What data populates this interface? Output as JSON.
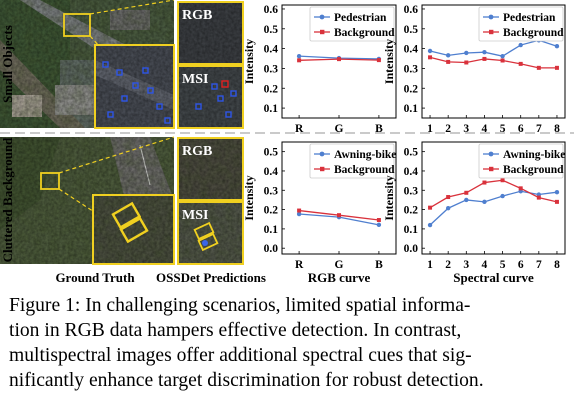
{
  "figure": {
    "row_labels": [
      "Small Objects",
      "Cluttered Background"
    ],
    "panel_labels": {
      "rgb": "RGB",
      "msi": "MSI"
    },
    "column_captions": {
      "ground_truth": "Ground Truth",
      "predictions": "OSSDet Predictions"
    },
    "xlabels": {
      "rgb": "RGB curve",
      "spectral": "Spectral curve"
    },
    "colors": {
      "series_a": "#4f7fcf",
      "series_b": "#d9323c",
      "box_yellow": "#f0d020",
      "box_blue": "#2e55e6",
      "divider": "#b8b8b8"
    }
  },
  "caption": {
    "lines": [
      "Figure 1: In challenging scenarios, limited spatial informa-",
      "tion in RGB data hampers effective detection. In contrast,",
      "multispectral images offer additional spectral cues that sig-",
      "nificantly enhance target discrimination for robust detection."
    ]
  },
  "chart_data": [
    {
      "type": "line",
      "title": "",
      "xlabel": "",
      "ylabel": "Intensity",
      "categories": [
        "R",
        "G",
        "B"
      ],
      "ylim": [
        0.05,
        0.62
      ],
      "yticks": [
        "0.1",
        "0.2",
        "0.3",
        "0.4",
        "0.5",
        "0.6"
      ],
      "legend": "top-right",
      "grid": false,
      "series": [
        {
          "name": "Pedestrian",
          "values": [
            0.362,
            0.352,
            0.348
          ]
        },
        {
          "name": "Background",
          "values": [
            0.341,
            0.347,
            0.342
          ]
        }
      ]
    },
    {
      "type": "line",
      "title": "",
      "xlabel": "",
      "ylabel": "Intensity",
      "categories": [
        "1",
        "2",
        "3",
        "4",
        "5",
        "6",
        "7",
        "8"
      ],
      "ylim": [
        0.05,
        0.62
      ],
      "yticks": [
        "0.1",
        "0.2",
        "0.3",
        "0.4",
        "0.5",
        "0.6"
      ],
      "legend": "top-right",
      "grid": false,
      "series": [
        {
          "name": "Pedestrian",
          "values": [
            0.388,
            0.366,
            0.378,
            0.382,
            0.362,
            0.418,
            0.442,
            0.412
          ]
        },
        {
          "name": "Background",
          "values": [
            0.356,
            0.333,
            0.33,
            0.348,
            0.34,
            0.323,
            0.303,
            0.303
          ]
        }
      ]
    },
    {
      "type": "line",
      "title": "",
      "xlabel": "RGB curve",
      "ylabel": "Intensity",
      "categories": [
        "R",
        "G",
        "B"
      ],
      "ylim": [
        -0.03,
        0.55
      ],
      "yticks": [
        "0.0",
        "0.1",
        "0.2",
        "0.3",
        "0.4",
        "0.5"
      ],
      "legend": "top-right",
      "grid": false,
      "series": [
        {
          "name": "Awning-bike",
          "values": [
            0.177,
            0.161,
            0.121
          ]
        },
        {
          "name": "Background",
          "values": [
            0.195,
            0.171,
            0.146
          ]
        }
      ]
    },
    {
      "type": "line",
      "title": "",
      "xlabel": "Spectral curve",
      "ylabel": "Intensity",
      "categories": [
        "1",
        "2",
        "3",
        "4",
        "5",
        "6",
        "7",
        "8"
      ],
      "ylim": [
        -0.03,
        0.55
      ],
      "yticks": [
        "0.0",
        "0.1",
        "0.2",
        "0.3",
        "0.4",
        "0.5"
      ],
      "legend": "top-right",
      "grid": false,
      "series": [
        {
          "name": "Awning-bike",
          "values": [
            0.12,
            0.207,
            0.25,
            0.24,
            0.27,
            0.295,
            0.278,
            0.29
          ]
        },
        {
          "name": "Background",
          "values": [
            0.21,
            0.265,
            0.287,
            0.34,
            0.352,
            0.31,
            0.262,
            0.24
          ]
        }
      ]
    }
  ]
}
